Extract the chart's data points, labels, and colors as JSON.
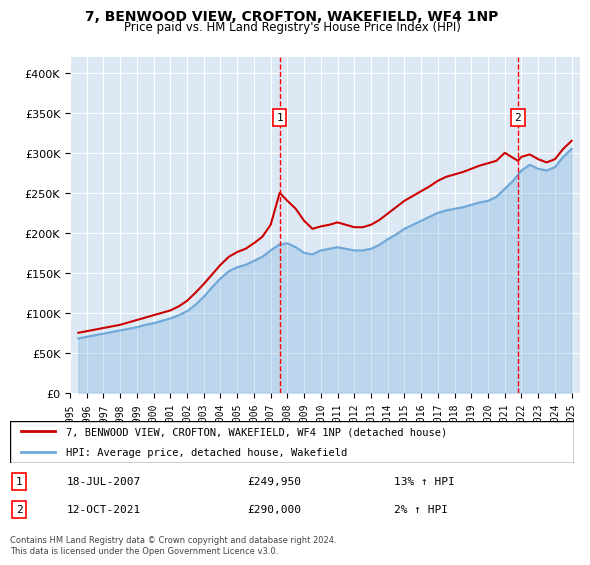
{
  "title": "7, BENWOOD VIEW, CROFTON, WAKEFIELD, WF4 1NP",
  "subtitle": "Price paid vs. HM Land Registry's House Price Index (HPI)",
  "background_color": "#dce9f5",
  "plot_bg_color": "#dce9f5",
  "red_line_label": "7, BENWOOD VIEW, CROFTON, WAKEFIELD, WF4 1NP (detached house)",
  "blue_line_label": "HPI: Average price, detached house, Wakefield",
  "transaction1_label": "1",
  "transaction1_date": "18-JUL-2007",
  "transaction1_price": "£249,950",
  "transaction1_hpi": "13% ↑ HPI",
  "transaction2_label": "2",
  "transaction2_date": "12-OCT-2021",
  "transaction2_price": "£290,000",
  "transaction2_hpi": "2% ↑ HPI",
  "transaction1_x": 2007.54,
  "transaction2_x": 2021.79,
  "ylim": [
    0,
    420000
  ],
  "xlim_start": 1995,
  "xlim_end": 2025.5,
  "yticks": [
    0,
    50000,
    100000,
    150000,
    200000,
    250000,
    300000,
    350000,
    400000
  ],
  "xticks": [
    1995,
    1996,
    1997,
    1998,
    1999,
    2000,
    2001,
    2002,
    2003,
    2004,
    2005,
    2006,
    2007,
    2008,
    2009,
    2010,
    2011,
    2012,
    2013,
    2014,
    2015,
    2016,
    2017,
    2018,
    2019,
    2020,
    2021,
    2022,
    2023,
    2024,
    2025
  ],
  "hpi_data": {
    "years": [
      1995.5,
      1996.0,
      1996.5,
      1997.0,
      1997.5,
      1998.0,
      1998.5,
      1999.0,
      1999.5,
      2000.0,
      2000.5,
      2001.0,
      2001.5,
      2002.0,
      2002.5,
      2003.0,
      2003.5,
      2004.0,
      2004.5,
      2005.0,
      2005.5,
      2006.0,
      2006.5,
      2007.0,
      2007.5,
      2008.0,
      2008.5,
      2009.0,
      2009.5,
      2010.0,
      2010.5,
      2011.0,
      2011.5,
      2012.0,
      2012.5,
      2013.0,
      2013.5,
      2014.0,
      2014.5,
      2015.0,
      2015.5,
      2016.0,
      2016.5,
      2017.0,
      2017.5,
      2018.0,
      2018.5,
      2019.0,
      2019.5,
      2020.0,
      2020.5,
      2021.0,
      2021.5,
      2022.0,
      2022.5,
      2023.0,
      2023.5,
      2024.0,
      2024.5,
      2025.0
    ],
    "values": [
      68000,
      70000,
      72000,
      74000,
      76000,
      78000,
      80000,
      82000,
      85000,
      87000,
      90000,
      93000,
      97000,
      102000,
      110000,
      120000,
      132000,
      143000,
      152000,
      157000,
      160000,
      165000,
      170000,
      178000,
      185000,
      187000,
      182000,
      175000,
      173000,
      178000,
      180000,
      182000,
      180000,
      178000,
      178000,
      180000,
      185000,
      192000,
      198000,
      205000,
      210000,
      215000,
      220000,
      225000,
      228000,
      230000,
      232000,
      235000,
      238000,
      240000,
      245000,
      255000,
      265000,
      278000,
      285000,
      280000,
      278000,
      282000,
      295000,
      305000
    ]
  },
  "red_data": {
    "years": [
      1995.5,
      1996.0,
      1996.5,
      1997.0,
      1997.5,
      1998.0,
      1998.5,
      1999.0,
      1999.5,
      2000.0,
      2000.5,
      2001.0,
      2001.5,
      2002.0,
      2002.5,
      2003.0,
      2003.5,
      2004.0,
      2004.5,
      2005.0,
      2005.5,
      2006.0,
      2006.5,
      2007.0,
      2007.54,
      2008.0,
      2008.5,
      2009.0,
      2009.5,
      2010.0,
      2010.5,
      2011.0,
      2011.5,
      2012.0,
      2012.5,
      2013.0,
      2013.5,
      2014.0,
      2014.5,
      2015.0,
      2015.5,
      2016.0,
      2016.5,
      2017.0,
      2017.5,
      2018.0,
      2018.5,
      2019.0,
      2019.5,
      2020.0,
      2020.5,
      2021.0,
      2021.79,
      2022.0,
      2022.5,
      2023.0,
      2023.5,
      2024.0,
      2024.5,
      2025.0
    ],
    "values": [
      75000,
      77000,
      79000,
      81000,
      83000,
      85000,
      88000,
      91000,
      94000,
      97000,
      100000,
      103000,
      108000,
      115000,
      125000,
      136000,
      148000,
      160000,
      170000,
      176000,
      180000,
      187000,
      195000,
      210000,
      249950,
      240000,
      230000,
      215000,
      205000,
      208000,
      210000,
      213000,
      210000,
      207000,
      207000,
      210000,
      216000,
      224000,
      232000,
      240000,
      246000,
      252000,
      258000,
      265000,
      270000,
      273000,
      276000,
      280000,
      284000,
      287000,
      290000,
      300000,
      290000,
      295000,
      298000,
      292000,
      288000,
      292000,
      305000,
      315000
    ]
  },
  "footer": "Contains HM Land Registry data © Crown copyright and database right 2024.\nThis data is licensed under the Open Government Licence v3.0."
}
